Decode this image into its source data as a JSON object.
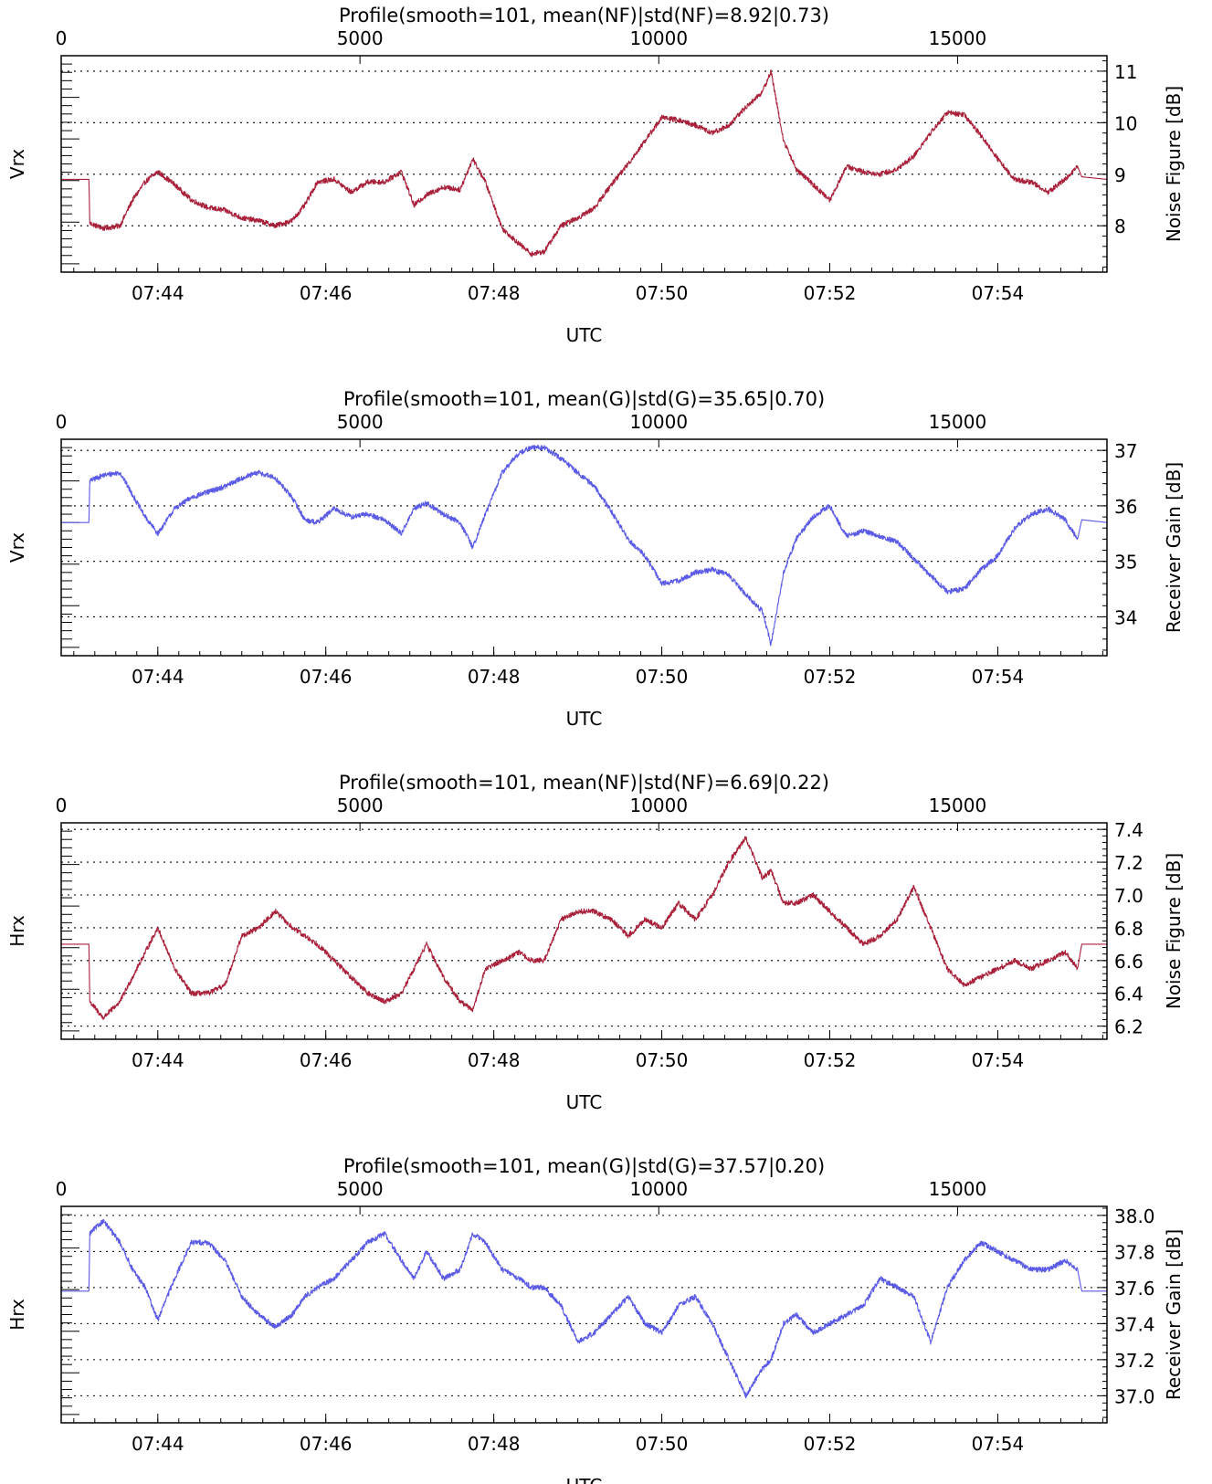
{
  "chart_data": [
    {
      "type": "line",
      "title": "Profile(smooth=101, mean(NF)|std(NF)=8.92|0.73)",
      "ylabel": "Vrx",
      "right_ylabel": "Noise Figure [dB]",
      "xlabel": "UTC",
      "top_ticks": [
        "0",
        "5000",
        "10000",
        "15000"
      ],
      "top_tick_values": [
        0,
        5000,
        10000,
        15000
      ],
      "top_xlim": [
        0,
        17500
      ],
      "time_ticks": [
        "07:44",
        "07:46",
        "07:48",
        "07:50",
        "07:52",
        "07:54"
      ],
      "time_tick_minutes": [
        44,
        46,
        48,
        50,
        52,
        54
      ],
      "xlim_minutes": [
        42.85,
        55.3
      ],
      "ylim": [
        7.1,
        11.3
      ],
      "yticks": [
        "8",
        "9",
        "10",
        "11"
      ],
      "ytick_values": [
        8,
        9,
        10,
        11
      ],
      "color": "#a8203a",
      "series": [
        {
          "x": [
            42.85,
            43.18,
            43.19,
            43.35,
            43.55,
            43.7,
            43.85,
            44.0,
            44.2,
            44.4,
            44.6,
            44.8,
            45.0,
            45.2,
            45.4,
            45.6,
            45.75,
            45.9,
            46.1,
            46.3,
            46.5,
            46.7,
            46.9,
            47.05,
            47.2,
            47.4,
            47.6,
            47.75,
            47.9,
            48.1,
            48.3,
            48.45,
            48.6,
            48.8,
            49.0,
            49.2,
            49.4,
            49.6,
            49.8,
            50.0,
            50.2,
            50.4,
            50.6,
            50.8,
            51.0,
            51.2,
            51.3,
            51.45,
            51.6,
            51.8,
            52.0,
            52.2,
            52.4,
            52.6,
            52.8,
            53.0,
            53.2,
            53.4,
            53.6,
            53.8,
            54.0,
            54.2,
            54.4,
            54.6,
            54.8,
            54.95,
            55.0,
            55.3
          ],
          "y": [
            8.9,
            8.9,
            8.05,
            7.95,
            8.0,
            8.5,
            8.85,
            9.05,
            8.8,
            8.5,
            8.35,
            8.3,
            8.15,
            8.1,
            8.0,
            8.1,
            8.4,
            8.85,
            8.9,
            8.65,
            8.85,
            8.85,
            9.05,
            8.4,
            8.6,
            8.75,
            8.7,
            9.3,
            8.85,
            7.95,
            7.65,
            7.45,
            7.5,
            8.0,
            8.15,
            8.35,
            8.8,
            9.2,
            9.65,
            10.1,
            10.05,
            9.95,
            9.8,
            9.95,
            10.3,
            10.6,
            11.0,
            9.65,
            9.1,
            8.8,
            8.5,
            9.15,
            9.05,
            9.0,
            9.1,
            9.35,
            9.8,
            10.2,
            10.15,
            9.75,
            9.3,
            8.9,
            8.85,
            8.65,
            8.9,
            9.15,
            8.95,
            8.9
          ]
        }
      ]
    },
    {
      "type": "line",
      "title": "Profile(smooth=101, mean(G)|std(G)=35.65|0.70)",
      "ylabel": "Vrx",
      "right_ylabel": "Receiver Gain [dB]",
      "xlabel": "UTC",
      "top_ticks": [
        "0",
        "5000",
        "10000",
        "15000"
      ],
      "top_tick_values": [
        0,
        5000,
        10000,
        15000
      ],
      "top_xlim": [
        0,
        17500
      ],
      "time_ticks": [
        "07:44",
        "07:46",
        "07:48",
        "07:50",
        "07:52",
        "07:54"
      ],
      "time_tick_minutes": [
        44,
        46,
        48,
        50,
        52,
        54
      ],
      "xlim_minutes": [
        42.85,
        55.3
      ],
      "ylim": [
        33.3,
        37.2
      ],
      "yticks": [
        "34",
        "35",
        "36",
        "37"
      ],
      "ytick_values": [
        34,
        35,
        36,
        37
      ],
      "color": "#5a5ae6",
      "series": [
        {
          "x": [
            42.85,
            43.18,
            43.19,
            43.35,
            43.55,
            43.7,
            43.85,
            44.0,
            44.2,
            44.4,
            44.6,
            44.8,
            45.0,
            45.2,
            45.4,
            45.6,
            45.75,
            45.9,
            46.1,
            46.3,
            46.5,
            46.7,
            46.9,
            47.05,
            47.2,
            47.4,
            47.6,
            47.75,
            47.9,
            48.1,
            48.3,
            48.45,
            48.6,
            48.8,
            49.0,
            49.2,
            49.4,
            49.6,
            49.8,
            50.0,
            50.2,
            50.4,
            50.6,
            50.8,
            51.0,
            51.2,
            51.3,
            51.45,
            51.6,
            51.8,
            52.0,
            52.2,
            52.4,
            52.6,
            52.8,
            53.0,
            53.2,
            53.4,
            53.6,
            53.8,
            54.0,
            54.2,
            54.4,
            54.6,
            54.8,
            54.95,
            55.0,
            55.3
          ],
          "y": [
            35.7,
            35.7,
            36.45,
            36.55,
            36.6,
            36.2,
            35.8,
            35.5,
            35.95,
            36.15,
            36.25,
            36.35,
            36.5,
            36.6,
            36.5,
            36.15,
            35.75,
            35.7,
            35.95,
            35.8,
            35.85,
            35.75,
            35.5,
            35.95,
            36.05,
            35.85,
            35.7,
            35.25,
            35.85,
            36.6,
            36.95,
            37.05,
            37.05,
            36.85,
            36.6,
            36.35,
            35.9,
            35.4,
            35.1,
            34.6,
            34.65,
            34.8,
            34.85,
            34.75,
            34.4,
            34.1,
            33.5,
            34.8,
            35.4,
            35.8,
            36.0,
            35.45,
            35.55,
            35.45,
            35.35,
            35.05,
            34.75,
            34.45,
            34.5,
            34.85,
            35.1,
            35.6,
            35.85,
            35.95,
            35.75,
            35.4,
            35.75,
            35.7
          ]
        }
      ]
    },
    {
      "type": "line",
      "title": "Profile(smooth=101, mean(NF)|std(NF)=6.69|0.22)",
      "ylabel": "Hrx",
      "right_ylabel": "Noise Figure [dB]",
      "xlabel": "UTC",
      "top_ticks": [
        "0",
        "5000",
        "10000",
        "15000"
      ],
      "top_tick_values": [
        0,
        5000,
        10000,
        15000
      ],
      "top_xlim": [
        0,
        17500
      ],
      "time_ticks": [
        "07:44",
        "07:46",
        "07:48",
        "07:50",
        "07:52",
        "07:54"
      ],
      "time_tick_minutes": [
        44,
        46,
        48,
        50,
        52,
        54
      ],
      "xlim_minutes": [
        42.85,
        55.3
      ],
      "ylim": [
        6.12,
        7.44
      ],
      "yticks": [
        "6.2",
        "6.4",
        "6.6",
        "6.8",
        "7.0",
        "7.2",
        "7.4"
      ],
      "ytick_values": [
        6.2,
        6.4,
        6.6,
        6.8,
        7.0,
        7.2,
        7.4
      ],
      "color": "#a8203a",
      "series": [
        {
          "x": [
            42.85,
            43.18,
            43.19,
            43.35,
            43.55,
            43.7,
            43.85,
            44.0,
            44.2,
            44.4,
            44.6,
            44.8,
            45.0,
            45.2,
            45.4,
            45.6,
            45.75,
            45.9,
            46.1,
            46.3,
            46.5,
            46.7,
            46.9,
            47.05,
            47.2,
            47.4,
            47.6,
            47.75,
            47.9,
            48.1,
            48.3,
            48.45,
            48.6,
            48.8,
            49.0,
            49.2,
            49.4,
            49.6,
            49.8,
            50.0,
            50.2,
            50.4,
            50.6,
            50.8,
            51.0,
            51.2,
            51.3,
            51.45,
            51.6,
            51.8,
            52.0,
            52.2,
            52.4,
            52.6,
            52.8,
            53.0,
            53.2,
            53.4,
            53.6,
            53.8,
            54.0,
            54.2,
            54.4,
            54.6,
            54.8,
            54.95,
            55.0,
            55.3
          ],
          "y": [
            6.7,
            6.7,
            6.35,
            6.25,
            6.35,
            6.5,
            6.65,
            6.8,
            6.55,
            6.4,
            6.4,
            6.45,
            6.75,
            6.8,
            6.9,
            6.8,
            6.75,
            6.7,
            6.6,
            6.5,
            6.4,
            6.35,
            6.4,
            6.55,
            6.7,
            6.5,
            6.35,
            6.3,
            6.55,
            6.6,
            6.65,
            6.6,
            6.6,
            6.85,
            6.9,
            6.9,
            6.85,
            6.75,
            6.85,
            6.8,
            6.95,
            6.85,
            7.0,
            7.2,
            7.35,
            7.1,
            7.15,
            6.95,
            6.95,
            7.0,
            6.9,
            6.8,
            6.7,
            6.75,
            6.85,
            7.05,
            6.8,
            6.55,
            6.45,
            6.5,
            6.55,
            6.6,
            6.55,
            6.6,
            6.65,
            6.55,
            6.7,
            6.7
          ]
        }
      ]
    },
    {
      "type": "line",
      "title": "Profile(smooth=101, mean(G)|std(G)=37.57|0.20)",
      "ylabel": "Hrx",
      "right_ylabel": "Receiver Gain [dB]",
      "xlabel": "UTC",
      "top_ticks": [
        "0",
        "5000",
        "10000",
        "15000"
      ],
      "top_tick_values": [
        0,
        5000,
        10000,
        15000
      ],
      "top_xlim": [
        0,
        17500
      ],
      "time_ticks": [
        "07:44",
        "07:46",
        "07:48",
        "07:50",
        "07:52",
        "07:54"
      ],
      "time_tick_minutes": [
        44,
        46,
        48,
        50,
        52,
        54
      ],
      "xlim_minutes": [
        42.85,
        55.3
      ],
      "ylim": [
        36.85,
        38.05
      ],
      "yticks": [
        "37.0",
        "37.2",
        "37.4",
        "37.6",
        "37.8",
        "38.0"
      ],
      "ytick_values": [
        37.0,
        37.2,
        37.4,
        37.6,
        37.8,
        38.0
      ],
      "color": "#5a5ae6",
      "series": [
        {
          "x": [
            42.85,
            43.18,
            43.19,
            43.35,
            43.55,
            43.7,
            43.85,
            44.0,
            44.2,
            44.4,
            44.6,
            44.8,
            45.0,
            45.2,
            45.4,
            45.6,
            45.75,
            45.9,
            46.1,
            46.3,
            46.5,
            46.7,
            46.9,
            47.05,
            47.2,
            47.4,
            47.6,
            47.75,
            47.9,
            48.1,
            48.3,
            48.45,
            48.6,
            48.8,
            49.0,
            49.2,
            49.4,
            49.6,
            49.8,
            50.0,
            50.2,
            50.4,
            50.6,
            50.8,
            51.0,
            51.2,
            51.3,
            51.45,
            51.6,
            51.8,
            52.0,
            52.2,
            52.4,
            52.6,
            52.8,
            53.0,
            53.2,
            53.4,
            53.6,
            53.8,
            54.0,
            54.2,
            54.4,
            54.6,
            54.8,
            54.95,
            55.0,
            55.3
          ],
          "y": [
            37.58,
            37.58,
            37.9,
            37.97,
            37.85,
            37.7,
            37.6,
            37.42,
            37.65,
            37.85,
            37.85,
            37.75,
            37.55,
            37.45,
            37.38,
            37.45,
            37.55,
            37.6,
            37.65,
            37.75,
            37.85,
            37.9,
            37.75,
            37.65,
            37.8,
            37.65,
            37.7,
            37.9,
            37.85,
            37.7,
            37.65,
            37.6,
            37.6,
            37.5,
            37.3,
            37.35,
            37.45,
            37.55,
            37.4,
            37.35,
            37.5,
            37.55,
            37.4,
            37.2,
            37.0,
            37.15,
            37.2,
            37.4,
            37.45,
            37.35,
            37.4,
            37.45,
            37.5,
            37.65,
            37.6,
            37.55,
            37.3,
            37.6,
            37.75,
            37.85,
            37.8,
            37.75,
            37.7,
            37.7,
            37.75,
            37.7,
            37.58,
            37.58
          ]
        }
      ]
    }
  ]
}
